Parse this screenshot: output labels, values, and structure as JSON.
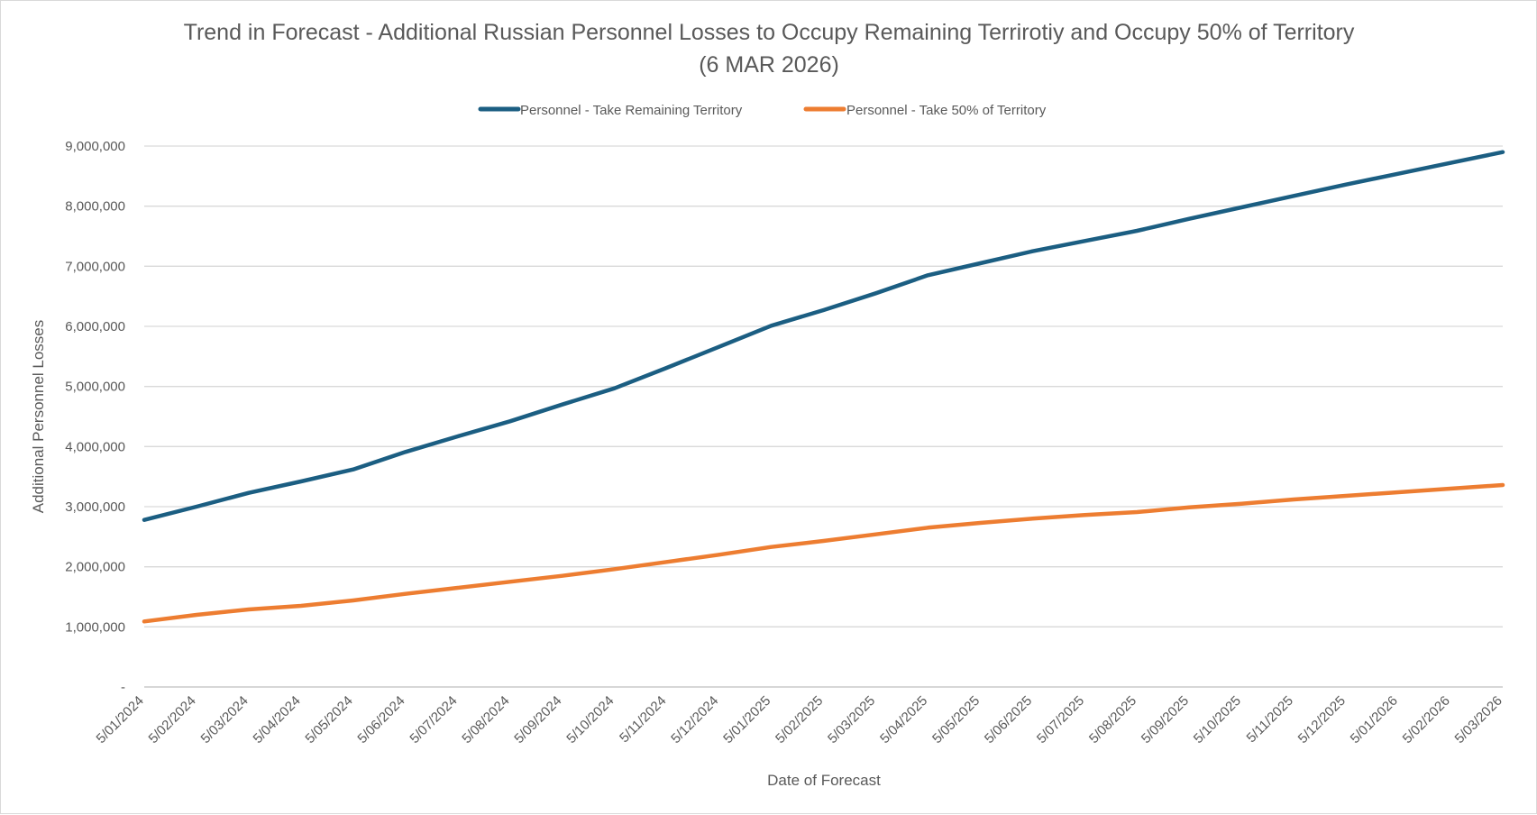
{
  "chart_data": {
    "type": "line",
    "title": "Trend in Forecast - Additional Russian Personnel Losses to Occupy Remaining Terrirotiy and Occupy 50% of Territory",
    "subtitle": "(6 MAR 2026)",
    "xlabel": "Date of Forecast",
    "ylabel": "Additional Personnel Losses",
    "ylim": [
      0,
      9000000
    ],
    "y_ticks": [
      "-",
      "1,000,000",
      "2,000,000",
      "3,000,000",
      "4,000,000",
      "5,000,000",
      "6,000,000",
      "7,000,000",
      "8,000,000",
      "9,000,000"
    ],
    "grid": true,
    "legend_position": "top",
    "x": [
      "5/01/2024",
      "5/02/2024",
      "5/03/2024",
      "5/04/2024",
      "5/05/2024",
      "5/06/2024",
      "5/07/2024",
      "5/08/2024",
      "5/09/2024",
      "5/10/2024",
      "5/11/2024",
      "5/12/2024",
      "5/01/2025",
      "5/02/2025",
      "5/03/2025",
      "5/04/2025",
      "5/05/2025",
      "5/06/2025",
      "5/07/2025",
      "5/08/2025",
      "5/09/2025",
      "5/10/2025",
      "5/11/2025",
      "5/12/2025",
      "5/01/2026",
      "5/02/2026",
      "5/03/2026"
    ],
    "series": [
      {
        "name": "Personnel - Take Remaining Territory",
        "color": "#1b5e82",
        "values": [
          2780000,
          3000000,
          3230000,
          3420000,
          3620000,
          3910000,
          4170000,
          4420000,
          4700000,
          4970000,
          5310000,
          5660000,
          6010000,
          6270000,
          6550000,
          6850000,
          7050000,
          7250000,
          7420000,
          7590000,
          7790000,
          7980000,
          8170000,
          8360000,
          8540000,
          8720000,
          8900000
        ]
      },
      {
        "name": "Personnel - Take 50% of Territory",
        "color": "#ed7d31",
        "values": [
          1090000,
          1200000,
          1290000,
          1350000,
          1440000,
          1550000,
          1650000,
          1750000,
          1850000,
          1960000,
          2080000,
          2200000,
          2330000,
          2430000,
          2540000,
          2650000,
          2730000,
          2800000,
          2860000,
          2910000,
          2990000,
          3050000,
          3120000,
          3180000,
          3240000,
          3300000,
          3360000
        ]
      }
    ]
  }
}
